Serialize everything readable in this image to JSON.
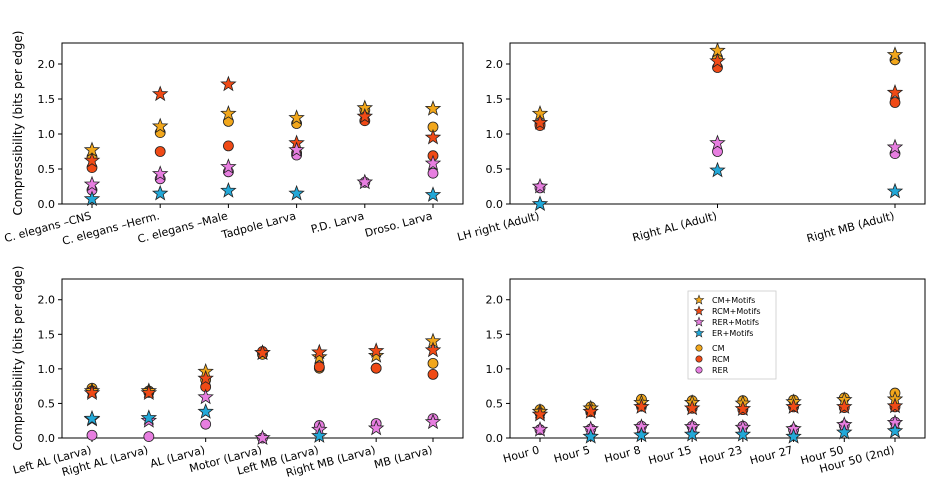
{
  "chart_data": [
    {
      "type": "scatter",
      "title": "",
      "xlabel": "",
      "ylabel": "Compressibility (bits per edge)",
      "ylim": [
        0,
        2.3
      ],
      "yticks": [
        "0.0",
        "0.5",
        "1.0",
        "1.5",
        "2.0"
      ],
      "categories": [
        "C. elegans  –CNS",
        "C. elegans  –Herm.",
        "C. elegans  –Male",
        "Tadpole Larva",
        "P.D. Larva",
        "Droso. Larva"
      ],
      "series": [
        {
          "name": "CM+Motifs",
          "marker": "star",
          "values": [
            0.77,
            1.11,
            1.29,
            1.23,
            1.37,
            1.36
          ]
        },
        {
          "name": "RCM+Motifs",
          "marker": "star",
          "values": [
            0.62,
            1.57,
            1.71,
            0.87,
            1.25,
            0.95
          ]
        },
        {
          "name": "RER+Motifs",
          "marker": "star",
          "values": [
            0.28,
            0.43,
            0.53,
            0.77,
            0.31,
            0.58
          ]
        },
        {
          "name": "ER+Motifs",
          "marker": "star",
          "values": [
            0.07,
            0.15,
            0.19,
            0.15,
            null,
            0.13
          ]
        },
        {
          "name": "CM",
          "marker": "circle",
          "values": [
            0.67,
            1.02,
            1.18,
            1.15,
            1.34,
            1.1
          ]
        },
        {
          "name": "RCM",
          "marker": "circle",
          "values": [
            0.52,
            0.75,
            0.83,
            0.73,
            1.19,
            0.69
          ]
        },
        {
          "name": "RER",
          "marker": "circle",
          "values": [
            0.2,
            0.36,
            0.46,
            0.7,
            0.31,
            0.44
          ]
        }
      ]
    },
    {
      "type": "scatter",
      "title": "",
      "xlabel": "",
      "ylabel": "",
      "ylim": [
        0,
        2.3
      ],
      "yticks": [
        "0.0",
        "0.5",
        "1.0",
        "1.5",
        "2.0"
      ],
      "categories": [
        "LH right (Adult)",
        "Right AL (Adult)",
        "Right MB  (Adult)"
      ],
      "series": [
        {
          "name": "CM+Motifs",
          "marker": "star",
          "values": [
            1.29,
            2.19,
            2.13
          ]
        },
        {
          "name": "RCM+Motifs",
          "marker": "star",
          "values": [
            1.16,
            2.04,
            1.59
          ]
        },
        {
          "name": "RER+Motifs",
          "marker": "star",
          "values": [
            0.25,
            0.87,
            0.81
          ]
        },
        {
          "name": "ER+Motifs",
          "marker": "star",
          "values": [
            0.0,
            0.48,
            0.18
          ]
        },
        {
          "name": "CM",
          "marker": "circle",
          "values": [
            1.14,
            2.09,
            2.06
          ]
        },
        {
          "name": "RCM",
          "marker": "circle",
          "values": [
            1.12,
            1.95,
            1.45
          ]
        },
        {
          "name": "RER",
          "marker": "circle",
          "values": [
            0.23,
            0.75,
            0.72
          ]
        }
      ]
    },
    {
      "type": "scatter",
      "title": "",
      "xlabel": "",
      "ylabel": "Compressibility (bits per edge)",
      "ylim": [
        0,
        2.3
      ],
      "yticks": [
        "0.0",
        "0.5",
        "1.0",
        "1.5",
        "2.0"
      ],
      "categories": [
        "Left AL (Larva)",
        "Right AL (Larva)",
        "AL (Larva)",
        "Motor (Larva)",
        "Left MB  (Larva)",
        "Right MB (Larva)",
        "MB  (Larva)"
      ],
      "series": [
        {
          "name": "CM+Motifs",
          "marker": "star",
          "values": [
            0.68,
            0.68,
            0.96,
            1.23,
            1.17,
            1.19,
            1.4
          ]
        },
        {
          "name": "RCM+Motifs",
          "marker": "star",
          "values": [
            0.65,
            0.65,
            0.86,
            1.23,
            1.24,
            1.26,
            1.27
          ]
        },
        {
          "name": "RER+Motifs",
          "marker": "star",
          "values": [
            0.27,
            0.25,
            0.59,
            0.0,
            0.12,
            0.14,
            0.23
          ]
        },
        {
          "name": "ER+Motifs",
          "marker": "star",
          "values": [
            0.28,
            0.29,
            0.38,
            null,
            0.03,
            null,
            null
          ]
        },
        {
          "name": "CM",
          "marker": "circle",
          "values": [
            0.72,
            0.68,
            0.84,
            1.21,
            1.01,
            1.01,
            1.08
          ]
        },
        {
          "name": "RCM",
          "marker": "circle",
          "values": [
            0.68,
            0.66,
            0.74,
            1.25,
            1.03,
            1.01,
            0.92
          ]
        },
        {
          "name": "RER",
          "marker": "circle",
          "values": [
            0.04,
            0.02,
            0.2,
            0.0,
            0.18,
            0.21,
            0.28
          ]
        }
      ]
    },
    {
      "type": "scatter",
      "title": "",
      "xlabel": "",
      "ylabel": "",
      "ylim": [
        0,
        2.3
      ],
      "yticks": [
        "0.0",
        "0.5",
        "1.0",
        "1.5",
        "2.0"
      ],
      "categories": [
        "Hour 0",
        "Hour 5",
        "Hour 8",
        "Hour 15",
        "Hour 23",
        "Hour 27",
        "Hour 50",
        "Hour 50 (2nd)"
      ],
      "legend": {
        "placement": "top-center",
        "entries": [
          {
            "name": "CM+Motifs",
            "marker": "star"
          },
          {
            "name": "RCM+Motifs",
            "marker": "star"
          },
          {
            "name": "RER+Motifs",
            "marker": "star"
          },
          {
            "name": "ER+Motifs",
            "marker": "star"
          },
          {
            "name": "CM",
            "marker": "circle"
          },
          {
            "name": "RCM",
            "marker": "circle"
          },
          {
            "name": "RER",
            "marker": "circle"
          }
        ]
      },
      "series": [
        {
          "name": "CM+Motifs",
          "marker": "star",
          "values": [
            0.38,
            0.43,
            0.51,
            0.51,
            0.5,
            0.52,
            0.55,
            0.56
          ]
        },
        {
          "name": "RCM+Motifs",
          "marker": "star",
          "values": [
            0.34,
            0.38,
            0.45,
            0.43,
            0.42,
            0.45,
            0.45,
            0.46
          ]
        },
        {
          "name": "RER+Motifs",
          "marker": "star",
          "values": [
            0.12,
            0.13,
            0.16,
            0.16,
            0.15,
            0.13,
            0.19,
            0.22
          ]
        },
        {
          "name": "ER+Motifs",
          "marker": "star",
          "values": [
            null,
            0.02,
            0.04,
            0.05,
            0.05,
            0.02,
            0.08,
            0.1
          ]
        },
        {
          "name": "CM",
          "marker": "circle",
          "values": [
            0.41,
            0.45,
            0.56,
            0.54,
            0.54,
            0.55,
            0.58,
            0.65
          ]
        },
        {
          "name": "RCM",
          "marker": "circle",
          "values": [
            0.36,
            0.38,
            0.46,
            0.43,
            0.41,
            0.45,
            0.44,
            0.45
          ]
        },
        {
          "name": "RER",
          "marker": "circle",
          "values": [
            0.12,
            0.13,
            0.17,
            0.17,
            0.17,
            0.12,
            0.18,
            0.23
          ]
        }
      ]
    }
  ],
  "series_colors": {
    "CM+Motifs": "#f2a71b",
    "RCM+Motifs": "#f04a16",
    "RER+Motifs": "#e77ee0",
    "ER+Motifs": "#22a8d8",
    "CM": "#f2a71b",
    "RCM": "#f04a16",
    "RER": "#e77ee0"
  }
}
